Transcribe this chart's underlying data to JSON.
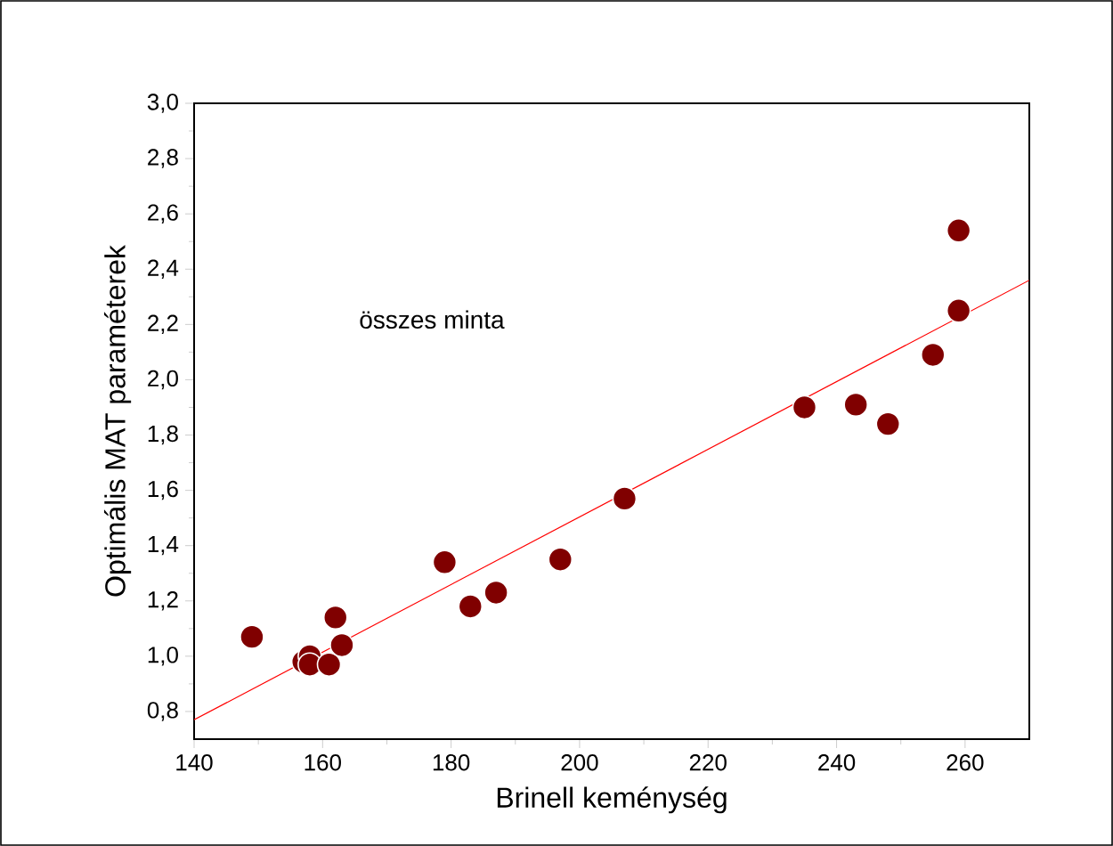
{
  "chart_data": {
    "type": "scatter",
    "xlabel": "Brinell keménység",
    "ylabel": "Optimális MAT paraméterek",
    "annotations": [
      "összes minta"
    ],
    "xlim": [
      140,
      270
    ],
    "ylim": [
      0.7,
      3.0
    ],
    "xticks": [
      140,
      160,
      180,
      200,
      220,
      240,
      260
    ],
    "yticks": [
      {
        "value": 0.8,
        "label": "0,8"
      },
      {
        "value": 1.0,
        "label": "1,0"
      },
      {
        "value": 1.2,
        "label": "1,2"
      },
      {
        "value": 1.4,
        "label": "1,4"
      },
      {
        "value": 1.6,
        "label": "1,6"
      },
      {
        "value": 1.8,
        "label": "1,8"
      },
      {
        "value": 2.0,
        "label": "2,0"
      },
      {
        "value": 2.2,
        "label": "2,2"
      },
      {
        "value": 2.4,
        "label": "2,4"
      },
      {
        "value": 2.6,
        "label": "2,6"
      },
      {
        "value": 2.8,
        "label": "2,8"
      },
      {
        "value": 3.0,
        "label": "3,0"
      }
    ],
    "grid": false,
    "series": [
      {
        "type": "scatter",
        "marker": "circle",
        "color": "#800000",
        "x": [
          149,
          157,
          158,
          158,
          161,
          162,
          163,
          179,
          183,
          187,
          197,
          207,
          235,
          243,
          248,
          255,
          259,
          259
        ],
        "values": [
          1.07,
          0.98,
          1.0,
          0.97,
          0.97,
          1.14,
          1.04,
          1.34,
          1.18,
          1.23,
          1.35,
          1.57,
          1.9,
          1.91,
          1.84,
          2.09,
          2.25,
          2.54
        ]
      },
      {
        "type": "line",
        "marker": "none",
        "color": "#ff0000",
        "x": [
          140,
          270
        ],
        "values": [
          0.77,
          2.36
        ]
      }
    ]
  }
}
